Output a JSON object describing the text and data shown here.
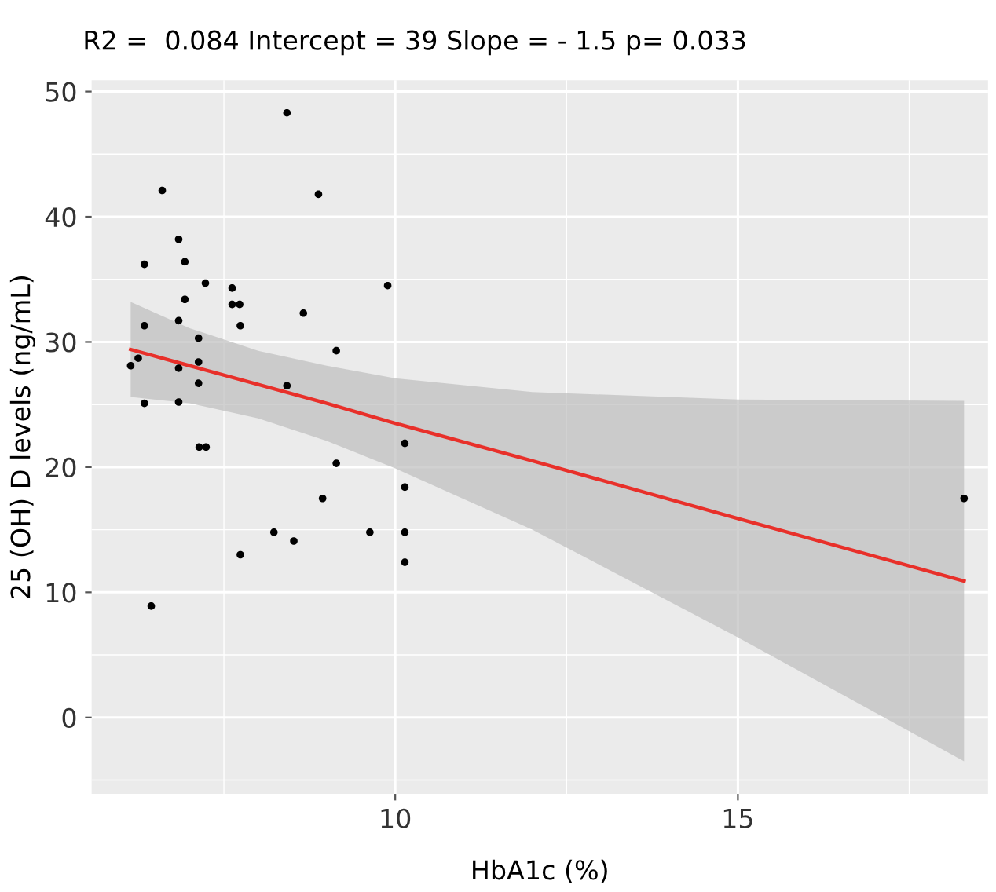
{
  "chart_data": {
    "type": "scatter",
    "title": "R2 =  0.084 Intercept = 39 Slope = - 1.5 p= 0.033",
    "xlabel": "HbA1c (%)",
    "ylabel": "25 (OH) D levels (ng/mL)",
    "xlim": [
      5.57,
      18.65
    ],
    "ylim": [
      -6.1,
      50.9
    ],
    "xticks": [
      10,
      15
    ],
    "yticks": [
      0,
      10,
      20,
      30,
      40,
      50
    ],
    "grid": true,
    "series": [
      {
        "marker": "circle",
        "color": "#000000",
        "x": [
          8.42,
          6.6,
          8.88,
          6.84,
          6.34,
          6.93,
          7.23,
          9.89,
          7.62,
          6.93,
          7.62,
          7.73,
          8.66,
          6.34,
          6.84,
          7.74,
          7.13,
          9.14,
          6.25,
          6.14,
          7.13,
          6.84,
          7.13,
          8.42,
          6.34,
          6.84,
          7.14,
          7.24,
          6.44,
          7.74,
          8.23,
          8.52,
          8.94,
          9.14,
          9.63,
          10.14,
          10.14,
          10.14,
          10.14,
          18.3
        ],
        "values": [
          48.3,
          42.1,
          41.8,
          38.2,
          36.2,
          36.4,
          34.7,
          34.5,
          34.3,
          33.4,
          33.0,
          33.0,
          32.3,
          31.3,
          31.7,
          31.3,
          30.3,
          29.3,
          28.7,
          28.1,
          28.4,
          27.9,
          26.7,
          26.5,
          25.1,
          25.2,
          21.6,
          21.6,
          8.9,
          13.0,
          14.8,
          14.1,
          17.5,
          20.3,
          14.8,
          21.9,
          18.4,
          14.8,
          12.4,
          17.5
        ]
      },
      {
        "type": "line",
        "color": "#e8302a",
        "x": [
          6.14,
          7,
          8,
          9,
          10,
          12,
          15,
          18.3
        ],
        "values": [
          29.4,
          28.1,
          26.6,
          25.1,
          23.5,
          20.5,
          15.9,
          10.9
        ],
        "lower": [
          25.6,
          25.1,
          23.9,
          22.1,
          19.9,
          15.0,
          6.4,
          -3.5
        ],
        "upper": [
          33.2,
          31.1,
          29.3,
          28.1,
          27.1,
          26.0,
          25.4,
          25.3
        ]
      }
    ]
  }
}
